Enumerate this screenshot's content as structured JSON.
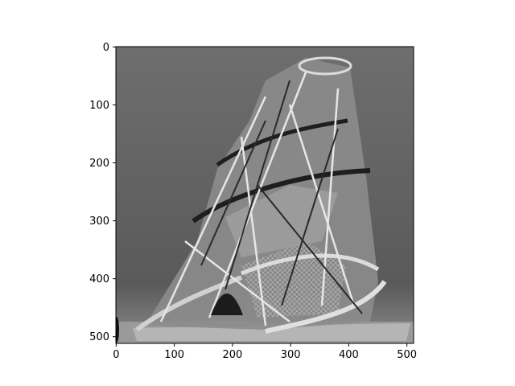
{
  "chart_data": {
    "type": "heatmap",
    "title": "",
    "xlabel": "",
    "ylabel": "",
    "colormap": "gray",
    "xlim": [
      0,
      511
    ],
    "ylim": [
      511,
      0
    ],
    "xticks": [
      0,
      100,
      200,
      300,
      400,
      500
    ],
    "yticks": [
      0,
      100,
      200,
      300,
      400,
      500
    ],
    "image_shape": [
      512,
      512
    ],
    "image_description": "grayscale tower-like sculpture with spiral bands"
  }
}
